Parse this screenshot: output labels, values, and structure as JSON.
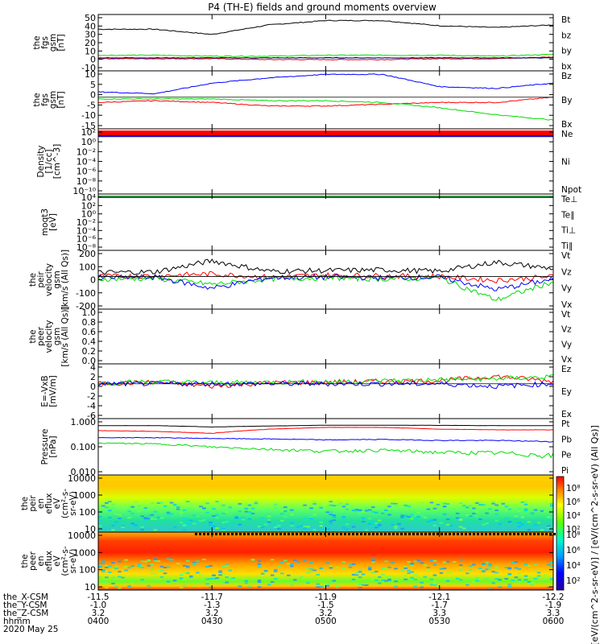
{
  "title": "P4 (TH-E) fields and ground moments overview",
  "footer": {
    "row_labels": [
      "the_X-CSM",
      "the_Y-CSM",
      "the_Z-CSM",
      "hhmm",
      "2020 May 25"
    ],
    "columns": [
      {
        "x": "-11.5",
        "y": "-1.0",
        "z": "3.2",
        "t": "0400"
      },
      {
        "x": "-11.7",
        "y": "-1.3",
        "z": "3.2",
        "t": "0430"
      },
      {
        "x": "-11.9",
        "y": "-1.5",
        "z": "3.2",
        "t": "0500"
      },
      {
        "x": "-12.1",
        "y": "-1.7",
        "z": "3.3",
        "t": "0530"
      },
      {
        "x": "-12.2",
        "y": "-1.9",
        "z": "3.3",
        "t": "0600"
      }
    ]
  },
  "colors": {
    "black": "#000000",
    "red": "#ff0000",
    "green": "#00dd00",
    "blue": "#0000ff"
  },
  "colorbar": {
    "label": "[eV/(cm^2-s-sr-eV)] / [eV/(cm^2-s-sr-eV) (All Qs)]",
    "ticks_top": [
      "10⁸",
      "10⁶",
      "10⁴",
      "10²"
    ],
    "ticks_bottom": [
      "10⁸",
      "10⁶",
      "10⁴",
      "10²"
    ]
  },
  "chart_data": [
    {
      "id": "bfield",
      "type": "line",
      "ylabel": [
        "the",
        "fgs",
        "gsm",
        "[nT]"
      ],
      "ylim": [
        -15,
        50
      ],
      "yticks": [
        "50",
        "40",
        "30",
        "20",
        "10",
        "0",
        "-10"
      ],
      "legend": [
        {
          "name": "Bt",
          "color": "black"
        },
        {
          "name": "bz",
          "color": "red"
        },
        {
          "name": "by",
          "color": "green"
        },
        {
          "name": "bx",
          "color": "blue"
        }
      ],
      "x": [
        "0400",
        "0415",
        "0430",
        "0445",
        "0500",
        "0515",
        "0530",
        "0545",
        "0600"
      ],
      "series": [
        {
          "name": "Bt",
          "color": "black",
          "values": [
            33,
            33,
            27,
            38,
            43,
            43,
            37,
            35,
            38
          ]
        },
        {
          "name": "bz",
          "color": "red",
          "values": [
            -1,
            -1,
            -1,
            -2,
            -2,
            -2,
            -1,
            -1,
            1
          ]
        },
        {
          "name": "by",
          "color": "green",
          "values": [
            3,
            3,
            2,
            2,
            3,
            3,
            3,
            2,
            4
          ]
        },
        {
          "name": "bx",
          "color": "blue",
          "values": [
            0,
            0,
            0,
            0,
            0,
            0,
            0,
            0,
            0
          ]
        }
      ]
    },
    {
      "id": "bfield2",
      "type": "line",
      "ylabel": [
        "the",
        "fgs",
        "gsm",
        "[nT]"
      ],
      "ylim": [
        -18,
        15
      ],
      "yticks": [
        "10",
        "5",
        "0",
        "-5",
        "-10",
        "-15"
      ],
      "legend": [
        {
          "name": "Bz",
          "color": "red"
        },
        {
          "name": "By",
          "color": "green"
        },
        {
          "name": "Bx",
          "color": "blue"
        }
      ],
      "x": [
        "0400",
        "0415",
        "0430",
        "0445",
        "0500",
        "0515",
        "0530",
        "0545",
        "0600"
      ],
      "series": [
        {
          "name": "Bz",
          "color": "red",
          "values": [
            -3,
            -2,
            -3,
            -5,
            -5,
            -4,
            -3,
            -3,
            0
          ]
        },
        {
          "name": "By",
          "color": "green",
          "values": [
            -1,
            -1,
            -1,
            -2,
            -2,
            -3,
            -6,
            -10,
            -13
          ]
        },
        {
          "name": "Bx",
          "color": "blue",
          "values": [
            3,
            2,
            8,
            11,
            13,
            13,
            6,
            5,
            8
          ]
        }
      ]
    },
    {
      "id": "density",
      "type": "line",
      "ylabel": [
        "Density",
        "[1/cc]",
        "[cm^-3]"
      ],
      "yticks": [
        "10²",
        "10⁰",
        "10⁻²",
        "10⁻⁴",
        "10⁻⁶",
        "10⁻⁸",
        "10⁻¹⁰"
      ],
      "legend": [
        {
          "name": "Ne",
          "color": "red"
        },
        {
          "name": "Ni",
          "color": "black"
        },
        {
          "name": "Npot",
          "color": "blue"
        }
      ],
      "series": [
        {
          "name": "Ne",
          "color": "red",
          "level": 0.07
        },
        {
          "name": "Ni",
          "color": "black",
          "level": 0.11
        },
        {
          "name": "Npot",
          "color": "blue",
          "level": 0.12
        }
      ]
    },
    {
      "id": "temp",
      "type": "line",
      "ylabel": [
        "moqt3",
        "[eV]"
      ],
      "yticks": [
        "10⁴",
        "10²",
        "10⁰",
        "10⁻²",
        "10⁻⁴",
        "10⁻⁶",
        "10⁻⁸"
      ],
      "legend": [
        {
          "name": "Te⊥",
          "color": "red"
        },
        {
          "name": "Te∥",
          "color": "black"
        },
        {
          "name": "Ti⊥",
          "color": "blue"
        },
        {
          "name": "Ti∥",
          "color": "green"
        }
      ],
      "series": [
        {
          "name": "Te⊥",
          "color": "red",
          "level": 0.05
        },
        {
          "name": "Te∥",
          "color": "black",
          "level": 0.06
        },
        {
          "name": "Ti⊥",
          "color": "blue",
          "level": 0.04
        },
        {
          "name": "Ti∥",
          "color": "green",
          "level": 0.045
        }
      ]
    },
    {
      "id": "vpeir",
      "type": "line",
      "ylabel": [
        "the",
        "peir",
        "velocity",
        "gsm",
        "[km/s (All Qs)]"
      ],
      "ylim": [
        -250,
        200
      ],
      "yticks": [
        "200",
        "100",
        "0",
        "-100",
        "-200"
      ],
      "legend": [
        {
          "name": "Vt",
          "color": "black"
        },
        {
          "name": "Vz",
          "color": "red"
        },
        {
          "name": "Vy",
          "color": "green"
        },
        {
          "name": "Vx",
          "color": "blue"
        }
      ],
      "series": [
        {
          "name": "Vt",
          "color": "black",
          "values": [
            30,
            35,
            120,
            40,
            45,
            50,
            40,
            110,
            60
          ]
        },
        {
          "name": "Vz",
          "color": "red",
          "values": [
            0,
            5,
            20,
            -5,
            10,
            5,
            0,
            -30,
            0
          ]
        },
        {
          "name": "Vy",
          "color": "green",
          "values": [
            -20,
            -15,
            -60,
            -20,
            -10,
            -20,
            -10,
            -180,
            -40
          ]
        },
        {
          "name": "Vx",
          "color": "blue",
          "values": [
            -10,
            -5,
            -90,
            -10,
            -5,
            -10,
            -5,
            -100,
            -20
          ]
        }
      ]
    },
    {
      "id": "vpeer",
      "type": "line",
      "ylabel": [
        "the",
        "peer",
        "velocity",
        "gsm",
        "[km/s (All Qs)]"
      ],
      "ylim": [
        0,
        1.0
      ],
      "yticks": [
        "1.0",
        "0.8",
        "0.6",
        "0.4",
        "0.2",
        "0.0"
      ],
      "legend": [
        {
          "name": "Vt",
          "color": "black"
        },
        {
          "name": "Vz",
          "color": "red"
        },
        {
          "name": "Vy",
          "color": "green"
        },
        {
          "name": "Vx",
          "color": "blue"
        }
      ],
      "series": []
    },
    {
      "id": "efield",
      "type": "line",
      "ylabel": [
        "E=-VxB",
        "[mV/m]"
      ],
      "ylim": [
        -7,
        4
      ],
      "yticks": [
        "4",
        "2",
        "0",
        "-2",
        "-4",
        "-6"
      ],
      "legend": [
        {
          "name": "Ez",
          "color": "red"
        },
        {
          "name": "Ey",
          "color": "green"
        },
        {
          "name": "Ex",
          "color": "blue"
        }
      ],
      "series": [
        {
          "name": "Ez",
          "color": "red",
          "values": [
            0,
            0.3,
            -0.5,
            0.2,
            0.3,
            0.5,
            0.6,
            1.5,
            0.5
          ]
        },
        {
          "name": "Ey",
          "color": "green",
          "values": [
            0.2,
            0.4,
            0.2,
            0.3,
            0.4,
            0.6,
            0.8,
            1,
            1.4
          ]
        },
        {
          "name": "Ex",
          "color": "blue",
          "values": [
            0,
            0,
            0,
            0,
            0,
            0,
            0,
            -0.5,
            0
          ]
        }
      ]
    },
    {
      "id": "pressure",
      "type": "line",
      "ylabel": [
        "Pressure",
        "[nPa]"
      ],
      "yticks": [
        "1.000",
        "0.100",
        "0.010"
      ],
      "legend": [
        {
          "name": "Pt",
          "color": "black"
        },
        {
          "name": "Pb",
          "color": "red"
        },
        {
          "name": "Pe",
          "color": "green"
        },
        {
          "name": "Pi",
          "color": "blue"
        }
      ],
      "series": [
        {
          "name": "Pt",
          "color": "black",
          "values": [
            0.95,
            0.95,
            0.8,
            0.9,
            1,
            1,
            0.98,
            0.95,
            0.95
          ]
        },
        {
          "name": "Pb",
          "color": "red",
          "values": [
            0.5,
            0.45,
            0.35,
            0.6,
            0.75,
            0.75,
            0.6,
            0.55,
            0.55
          ]
        },
        {
          "name": "Pe",
          "color": "green",
          "values": [
            0.1,
            0.09,
            0.06,
            0.045,
            0.035,
            0.04,
            0.03,
            0.028,
            0.02
          ]
        },
        {
          "name": "Pi",
          "color": "blue",
          "values": [
            0.2,
            0.2,
            0.18,
            0.17,
            0.15,
            0.16,
            0.14,
            0.14,
            0.12
          ]
        }
      ]
    },
    {
      "id": "peir_flux",
      "type": "heatmap",
      "ylabel": [
        "the",
        "peir",
        "en",
        "eflux",
        "eV",
        "(cm²-s-",
        "sr-eV)"
      ],
      "yticks": [
        "10000",
        "1000",
        "100",
        "10"
      ]
    },
    {
      "id": "peer_flux",
      "type": "heatmap",
      "ylabel": [
        "the",
        "peer",
        "en",
        "eflux",
        "eV",
        "(cm²-s-",
        "sr-eV)"
      ],
      "yticks": [
        "10000",
        "1000",
        "100",
        "10"
      ]
    }
  ]
}
